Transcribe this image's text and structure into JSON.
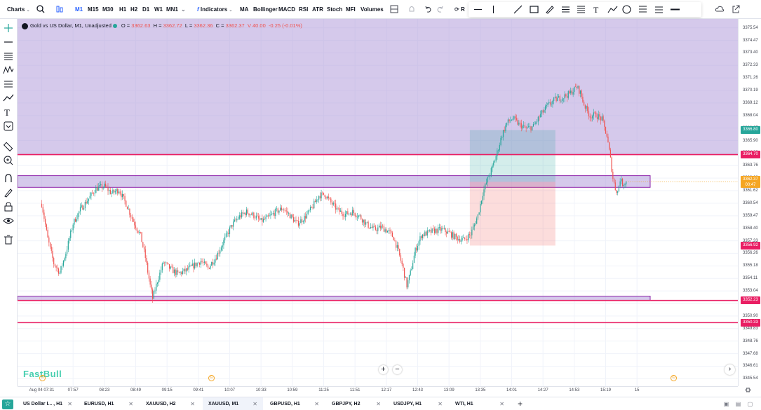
{
  "toolbar": {
    "charts_label": "Charts",
    "intervals": [
      "M1",
      "M15",
      "M30",
      "H1",
      "H2",
      "D1",
      "W1",
      "MN1"
    ],
    "active_interval": "M1",
    "indicators_label": "Indicators",
    "indicator_shortcuts": [
      "MA",
      "Bollinger",
      "MACD",
      "RSI",
      "ATR",
      "Stoch",
      "MFI",
      "Volumes"
    ],
    "replay_label": "R"
  },
  "legend": {
    "title": "Gold vs US Dollar, M1, Unadjusted",
    "open_label": "O =",
    "open": "3362.63",
    "high_label": "H =",
    "high": "3362.72",
    "low_label": "L =",
    "low": "3362.36",
    "close_label": "C =",
    "close": "3362.37",
    "volume": "V 40.00",
    "change": "-0.25 (-0.01%)"
  },
  "brand": "FastBull",
  "price_axis": {
    "ticks": [
      "3375.54",
      "3374.47",
      "3373.40",
      "3372.33",
      "3371.26",
      "3370.19",
      "3369.12",
      "3368.04",
      "3366.97",
      "3365.90",
      "3364.83",
      "3363.76",
      "3362.69",
      "3361.62",
      "3360.54",
      "3359.47",
      "3358.40",
      "3357.33",
      "3356.26",
      "3355.18",
      "3354.11",
      "3353.04",
      "3351.97",
      "3350.90",
      "3349.83",
      "3348.76",
      "3347.68",
      "3346.61",
      "3345.54"
    ],
    "labels": [
      {
        "value": "3366.80",
        "color": "#26a69a"
      },
      {
        "value": "3364.70",
        "color": "#e91e63"
      },
      {
        "value": "3362.37",
        "sub": "00:47",
        "color": "#f5a623"
      },
      {
        "value": "3356.92",
        "color": "#e91e63"
      },
      {
        "value": "3352.23",
        "color": "#e91e63"
      },
      {
        "value": "3350.33",
        "color": "#e91e63"
      }
    ]
  },
  "time_axis": {
    "ticks": [
      "Aug 04 07:31",
      "07:57",
      "08:23",
      "08:49",
      "09:15",
      "09:41",
      "10:07",
      "10:33",
      "10:59",
      "11:25",
      "11:51",
      "12:17",
      "12:43",
      "13:09",
      "13:35",
      "14:01",
      "14:27",
      "14:53",
      "15:19",
      "15"
    ]
  },
  "tabs": [
    {
      "label": "US Dollar I... , H1",
      "active": false
    },
    {
      "label": "EURUSD, H1",
      "active": false
    },
    {
      "label": "XAUUSD, H2",
      "active": false
    },
    {
      "label": "XAUUSD, M1",
      "active": true
    },
    {
      "label": "GBPUSD, H1",
      "active": false
    },
    {
      "label": "GBPJPY, H2",
      "active": false
    },
    {
      "label": "USDJPY, H1",
      "active": false
    },
    {
      "label": "WTI, H1",
      "active": false
    }
  ],
  "chart_data": {
    "type": "candlestick",
    "symbol": "Gold vs US Dollar",
    "interval": "M1",
    "ylim": [
      3344.9,
      3376.3
    ],
    "x_start": "Aug 04 07:31",
    "bars_per_26min": 26,
    "zones": [
      {
        "from": 3364.7,
        "to": 3376.3,
        "color": "#b39ddb"
      },
      {
        "from": 3361.9,
        "to": 3362.9,
        "color": "#b39ddb"
      },
      {
        "from": 3352.23,
        "to": 3352.6,
        "color": "#b39ddb"
      }
    ],
    "hlines": [
      3364.7,
      3352.23,
      3350.33
    ],
    "position": {
      "entry": 3362.37,
      "target": 3366.8,
      "stop": 3356.92,
      "start": "13:35",
      "end": "14:14"
    },
    "anchors": [
      [
        0,
        3360.5
      ],
      [
        5,
        3357.5
      ],
      [
        10,
        3355.4
      ],
      [
        15,
        3354.6
      ],
      [
        20,
        3356.3
      ],
      [
        26,
        3358.8
      ],
      [
        32,
        3360.0
      ],
      [
        38,
        3360.8
      ],
      [
        45,
        3361.8
      ],
      [
        52,
        3362.0
      ],
      [
        58,
        3361.4
      ],
      [
        64,
        3361.7
      ],
      [
        70,
        3360.5
      ],
      [
        76,
        3359.0
      ],
      [
        82,
        3357.8
      ],
      [
        86,
        3355.9
      ],
      [
        90,
        3353.5
      ],
      [
        92,
        3352.4
      ],
      [
        96,
        3353.9
      ],
      [
        101,
        3355.5
      ],
      [
        107,
        3354.9
      ],
      [
        113,
        3354.5
      ],
      [
        120,
        3354.8
      ],
      [
        126,
        3355.2
      ],
      [
        132,
        3355.6
      ],
      [
        138,
        3355.0
      ],
      [
        145,
        3356.0
      ],
      [
        152,
        3357.5
      ],
      [
        158,
        3358.7
      ],
      [
        164,
        3359.4
      ],
      [
        170,
        3359.8
      ],
      [
        176,
        3359.5
      ],
      [
        182,
        3359.0
      ],
      [
        188,
        3359.3
      ],
      [
        194,
        3359.8
      ],
      [
        200,
        3360.1
      ],
      [
        206,
        3359.5
      ],
      [
        212,
        3358.8
      ],
      [
        218,
        3359.3
      ],
      [
        224,
        3360.1
      ],
      [
        230,
        3361.2
      ],
      [
        235,
        3361.3
      ],
      [
        240,
        3360.6
      ],
      [
        246,
        3359.9
      ],
      [
        252,
        3359.6
      ],
      [
        258,
        3359.8
      ],
      [
        264,
        3359.4
      ],
      [
        270,
        3358.7
      ],
      [
        276,
        3358.3
      ],
      [
        282,
        3358.5
      ],
      [
        288,
        3358.1
      ],
      [
        292,
        3357.6
      ],
      [
        296,
        3356.4
      ],
      [
        300,
        3354.9
      ],
      [
        303,
        3353.5
      ],
      [
        306,
        3354.6
      ],
      [
        310,
        3356.5
      ],
      [
        315,
        3357.8
      ],
      [
        320,
        3358.0
      ],
      [
        326,
        3358.2
      ],
      [
        332,
        3358.3
      ],
      [
        338,
        3358.0
      ],
      [
        344,
        3357.6
      ],
      [
        350,
        3357.4
      ],
      [
        356,
        3357.9
      ],
      [
        362,
        3359.5
      ],
      [
        366,
        3361.4
      ],
      [
        370,
        3362.6
      ],
      [
        374,
        3363.6
      ],
      [
        378,
        3364.9
      ],
      [
        382,
        3366.4
      ],
      [
        386,
        3367.4
      ],
      [
        391,
        3367.8
      ],
      [
        396,
        3367.3
      ],
      [
        402,
        3366.9
      ],
      [
        408,
        3367.1
      ],
      [
        414,
        3368.1
      ],
      [
        420,
        3368.9
      ],
      [
        426,
        3369.4
      ],
      [
        432,
        3369.6
      ],
      [
        438,
        3369.9
      ],
      [
        444,
        3370.5
      ],
      [
        447,
        3370.0
      ],
      [
        450,
        3369.0
      ],
      [
        455,
        3368.0
      ],
      [
        460,
        3368.1
      ],
      [
        465,
        3367.7
      ],
      [
        469,
        3366.3
      ],
      [
        472,
        3364.3
      ],
      [
        474,
        3362.7
      ],
      [
        476,
        3361.8
      ],
      [
        478,
        3361.5
      ],
      [
        480,
        3362.6
      ],
      [
        482,
        3362.2
      ],
      [
        485,
        3362.37
      ]
    ]
  }
}
